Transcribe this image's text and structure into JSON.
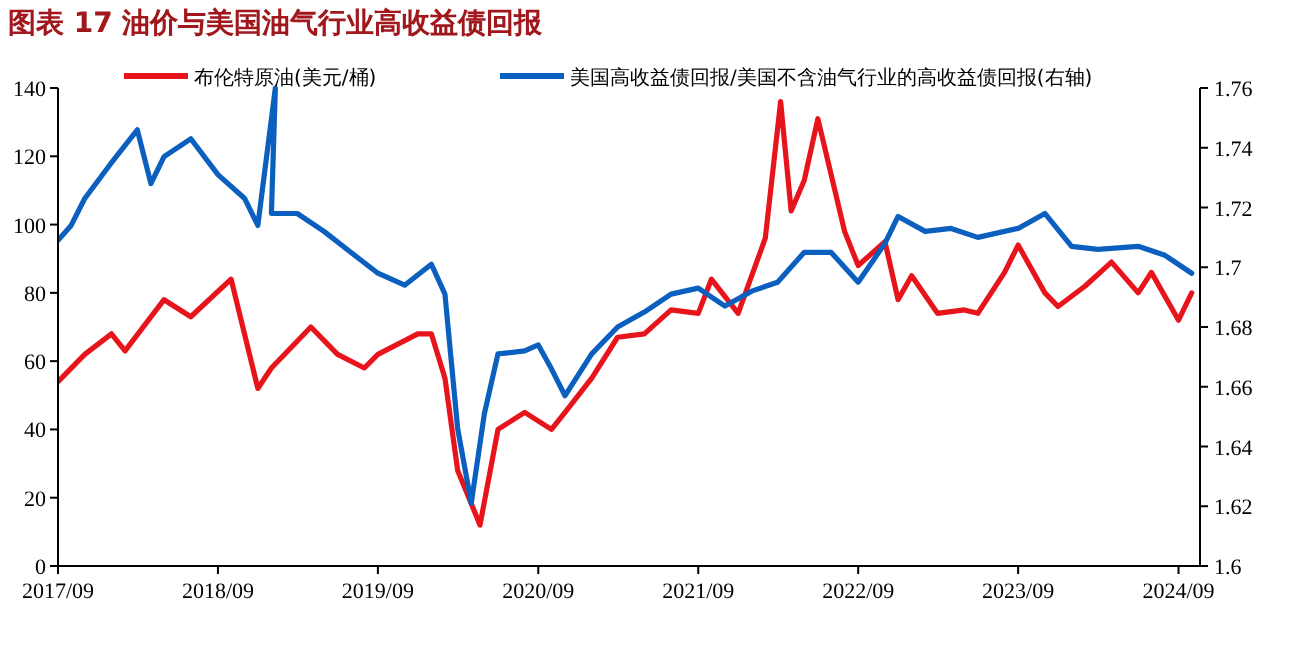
{
  "chart_data": {
    "type": "line",
    "title": "图表 17   油价与美国油气行业高收益债回报",
    "legend": "top",
    "xlim": [
      "2017-09",
      "2024-10-20"
    ],
    "xticks": [
      {
        "value": "2017-09",
        "label": "2017/09"
      },
      {
        "value": "2018-09",
        "label": "2018/09"
      },
      {
        "value": "2019-09",
        "label": "2019/09"
      },
      {
        "value": "2020-09",
        "label": "2020/09"
      },
      {
        "value": "2021-09",
        "label": "2021/09"
      },
      {
        "value": "2022-09",
        "label": "2022/09"
      },
      {
        "value": "2023-09",
        "label": "2023/09"
      },
      {
        "value": "2024-09",
        "label": "2024/09"
      }
    ],
    "ylim": [
      0,
      140
    ],
    "yticks": [
      0,
      20,
      40,
      60,
      80,
      100,
      120,
      140
    ],
    "y2lim": [
      1.6,
      1.76
    ],
    "y2ticks": [
      1.6,
      1.62,
      1.64,
      1.66,
      1.68,
      1.7,
      1.72,
      1.74,
      1.76
    ],
    "series": [
      {
        "name": "布伦特原油(美元/桶)",
        "color": "#e8141c",
        "x": [
          "2017-09",
          "2017-11",
          "2018-01",
          "2018-02",
          "2018-05",
          "2018-07",
          "2018-10",
          "2018-12",
          "2019-01",
          "2019-04",
          "2019-06",
          "2019-08",
          "2019-09",
          "2019-12",
          "2020-01",
          "2020-02",
          "2020-03",
          "2020-04-21",
          "2020-06",
          "2020-08",
          "2020-10",
          "2020-11",
          "2021-01",
          "2021-03",
          "2021-05",
          "2021-07",
          "2021-09",
          "2021-10",
          "2021-12",
          "2022-02",
          "2022-03-08",
          "2022-04",
          "2022-05",
          "2022-06",
          "2022-08",
          "2022-09",
          "2022-11",
          "2022-12",
          "2023-01",
          "2023-03",
          "2023-05",
          "2023-06",
          "2023-08",
          "2023-09",
          "2023-11",
          "2023-12",
          "2024-02",
          "2024-04",
          "2024-06",
          "2024-07",
          "2024-09",
          "2024-10"
        ],
        "values": [
          54,
          62,
          68,
          63,
          78,
          73,
          84,
          52,
          58,
          70,
          62,
          58,
          62,
          68,
          68,
          55,
          28,
          12,
          40,
          45,
          40,
          45,
          55,
          67,
          68,
          75,
          74,
          84,
          74,
          96,
          136,
          104,
          113,
          131,
          98,
          88,
          95,
          78,
          85,
          74,
          75,
          74,
          86,
          94,
          80,
          76,
          82,
          89,
          80,
          86,
          72,
          80
        ]
      },
      {
        "name": "美国高收益债回报/美国不含油气行业的高收益债回报(右轴)",
        "color": "#0a5fbf",
        "axis": "y2",
        "x": [
          "2017-09",
          "2017-10",
          "2017-11",
          "2018-01",
          "2018-03",
          "2018-04",
          "2018-05",
          "2018-07",
          "2018-09",
          "2018-11",
          "2018-12",
          "2019-01-10",
          "2019-01",
          "2019-03",
          "2019-05",
          "2019-07",
          "2019-09",
          "2019-11",
          "2020-01",
          "2020-02",
          "2020-03",
          "2020-04",
          "2020-05",
          "2020-06",
          "2020-08",
          "2020-09",
          "2020-10",
          "2020-11",
          "2021-01",
          "2021-03",
          "2021-05",
          "2021-07",
          "2021-09",
          "2021-11",
          "2022-01",
          "2022-03",
          "2022-05",
          "2022-07",
          "2022-09",
          "2022-11",
          "2022-12",
          "2023-02",
          "2023-04",
          "2023-06",
          "2023-09",
          "2023-11",
          "2024-01",
          "2024-03",
          "2024-06",
          "2024-08",
          "2024-10"
        ],
        "values": [
          1.709,
          1.714,
          1.723,
          1.735,
          1.746,
          1.728,
          1.737,
          1.743,
          1.731,
          1.723,
          1.714,
          1.76,
          1.718,
          1.718,
          1.712,
          1.705,
          1.698,
          1.694,
          1.701,
          1.691,
          1.646,
          1.621,
          1.651,
          1.671,
          1.672,
          1.674,
          1.666,
          1.657,
          1.671,
          1.68,
          1.685,
          1.691,
          1.693,
          1.687,
          1.692,
          1.695,
          1.705,
          1.705,
          1.695,
          1.708,
          1.717,
          1.712,
          1.713,
          1.71,
          1.713,
          1.718,
          1.707,
          1.706,
          1.707,
          1.704,
          1.698
        ]
      }
    ]
  }
}
